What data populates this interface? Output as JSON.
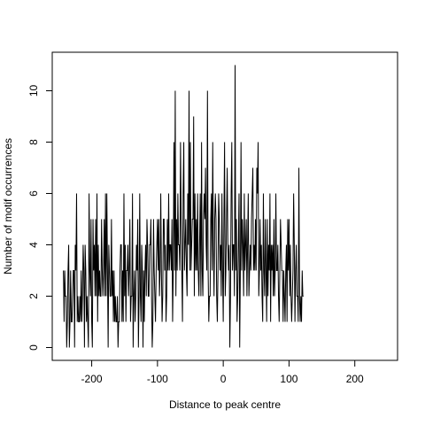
{
  "chart_data": {
    "type": "line",
    "title": "",
    "xlabel": "Distance to peak centre",
    "ylabel": "Number of motif occurrences",
    "xlim": [
      -260,
      265
    ],
    "ylim": [
      -0.5,
      11.5
    ],
    "x_ticks": [
      -200,
      -100,
      0,
      100,
      200
    ],
    "x_tick_labels": [
      "-200",
      "-100",
      "0",
      "100",
      "200"
    ],
    "y_ticks": [
      0,
      2,
      4,
      6,
      8,
      10
    ],
    "y_tick_labels": [
      "0",
      "2",
      "4",
      "6",
      "8",
      "10"
    ],
    "grid": false,
    "legend": "none",
    "line_color": "#000000",
    "series": [
      {
        "x_start": -243,
        "x_step": 1,
        "y": [
          3,
          1,
          3,
          2,
          2,
          0,
          1,
          3,
          4,
          0,
          1,
          3,
          1,
          1,
          2,
          3,
          3,
          0,
          4,
          3,
          6,
          1,
          2,
          1,
          1,
          2,
          1,
          3,
          1,
          2,
          4,
          3,
          0,
          4,
          3,
          1,
          2,
          1,
          0,
          6,
          3,
          2,
          5,
          1,
          0,
          5,
          3,
          4,
          2,
          5,
          2,
          6,
          1,
          4,
          2,
          3,
          2,
          2,
          5,
          3,
          2,
          3,
          5,
          2,
          6,
          2,
          6,
          3,
          0,
          4,
          3,
          2,
          2,
          5,
          2,
          3,
          1,
          3,
          1,
          2,
          1,
          1,
          2,
          0,
          1,
          1,
          3,
          4,
          4,
          1,
          3,
          1,
          6,
          2,
          4,
          1,
          3,
          3,
          4,
          2,
          3,
          5,
          1,
          2,
          2,
          6,
          0,
          2,
          3,
          1,
          2,
          4,
          3,
          5,
          0,
          2,
          6,
          2,
          1,
          4,
          3,
          0,
          3,
          1,
          3,
          4,
          2,
          5,
          4,
          2,
          2,
          4,
          4,
          5,
          2,
          0,
          1,
          5,
          3,
          2,
          1,
          3,
          4,
          5,
          3,
          5,
          2,
          3,
          6,
          3,
          1,
          2,
          5,
          5,
          3,
          4,
          1,
          2,
          5,
          3,
          6,
          3,
          4,
          4,
          3,
          5,
          1,
          3,
          8,
          3,
          10,
          2,
          5,
          3,
          6,
          4,
          4,
          3,
          8,
          5,
          3,
          1,
          6,
          8,
          3,
          4,
          5,
          3,
          2,
          6,
          4,
          10,
          3,
          8,
          3,
          4,
          5,
          5,
          9,
          2,
          6,
          3,
          5,
          3,
          6,
          3,
          2,
          4,
          6,
          2,
          8,
          3,
          2,
          5,
          6,
          5,
          7,
          4,
          3,
          10,
          3,
          1,
          2,
          2,
          5,
          6,
          3,
          8,
          4,
          2,
          5,
          6,
          5,
          2,
          1,
          3,
          6,
          5,
          3,
          4,
          2,
          6,
          3,
          1,
          5,
          8,
          2,
          3,
          5,
          7,
          4,
          3,
          4,
          0,
          2,
          6,
          8,
          3,
          4,
          4,
          2,
          11,
          3,
          5,
          1,
          2,
          4,
          6,
          0,
          3,
          8,
          3,
          5,
          4,
          2,
          6,
          3,
          4,
          5,
          2,
          4,
          6,
          2,
          3,
          4,
          3,
          5,
          6,
          7,
          3,
          4,
          3,
          5,
          3,
          7,
          6,
          8,
          2,
          3,
          5,
          3,
          4,
          2,
          1,
          6,
          3,
          2,
          5,
          3,
          1,
          5,
          2,
          4,
          3,
          6,
          1,
          4,
          3,
          4,
          2,
          5,
          2,
          3,
          6,
          3,
          3,
          4,
          2,
          1,
          3,
          5,
          4,
          3,
          3,
          1,
          3,
          2,
          1,
          3,
          4,
          1,
          5,
          3,
          5,
          2,
          4,
          2,
          1,
          2,
          3,
          6,
          4,
          1,
          3,
          4,
          2,
          2,
          1,
          7,
          2,
          1,
          2,
          1,
          3,
          2,
          2
        ]
      }
    ]
  }
}
